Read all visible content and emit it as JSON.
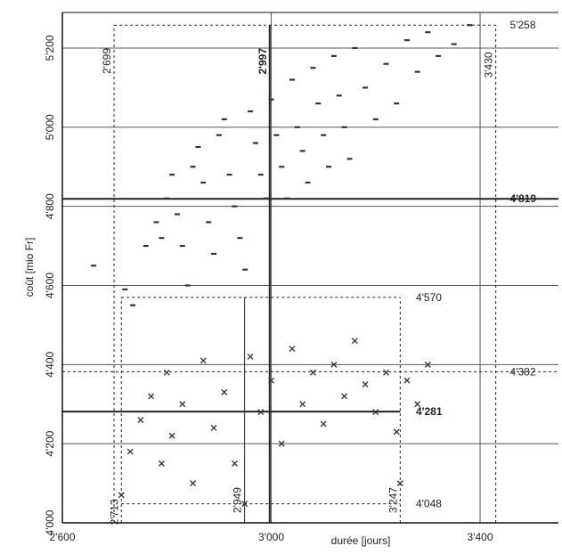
{
  "chart_data": {
    "type": "scatter",
    "title": "",
    "xlabel": "durée [jours]",
    "ylabel": "coût [mio Fr]",
    "xlim": [
      2600,
      3550
    ],
    "ylim": [
      4000,
      5290
    ],
    "x_ticks": [
      {
        "value": 2600,
        "label": "2'600"
      },
      {
        "value": 3000,
        "label": "3'000"
      },
      {
        "value": 3400,
        "label": "3'400"
      }
    ],
    "y_ticks": [
      {
        "value": 4000,
        "label": "4'000"
      },
      {
        "value": 4200,
        "label": "4'200"
      },
      {
        "value": 4400,
        "label": "4'400"
      },
      {
        "value": 4600,
        "label": "4'600"
      },
      {
        "value": 4800,
        "label": "4'800"
      },
      {
        "value": 5000,
        "label": "5'000"
      },
      {
        "value": 5200,
        "label": "5'200"
      }
    ],
    "grid": true,
    "series": [
      {
        "marker": "dash",
        "color": "#333333",
        "points": [
          [
            2660,
            4650
          ],
          [
            2720,
            4590
          ],
          [
            2735,
            4550
          ],
          [
            2760,
            4700
          ],
          [
            2780,
            4760
          ],
          [
            2790,
            4720
          ],
          [
            2800,
            4820
          ],
          [
            2810,
            4880
          ],
          [
            2820,
            4780
          ],
          [
            2830,
            4700
          ],
          [
            2840,
            4600
          ],
          [
            2850,
            4900
          ],
          [
            2860,
            4950
          ],
          [
            2870,
            4860
          ],
          [
            2880,
            4760
          ],
          [
            2890,
            4680
          ],
          [
            2900,
            4980
          ],
          [
            2910,
            5020
          ],
          [
            2920,
            4880
          ],
          [
            2930,
            4800
          ],
          [
            2940,
            4720
          ],
          [
            2950,
            4640
          ],
          [
            2960,
            5040
          ],
          [
            2970,
            4960
          ],
          [
            2980,
            4880
          ],
          [
            2990,
            4820
          ],
          [
            3000,
            5070
          ],
          [
            3010,
            4980
          ],
          [
            3020,
            4900
          ],
          [
            3030,
            4820
          ],
          [
            3040,
            5120
          ],
          [
            3050,
            5000
          ],
          [
            3060,
            4940
          ],
          [
            3070,
            4860
          ],
          [
            3080,
            5150
          ],
          [
            3090,
            5060
          ],
          [
            3100,
            4980
          ],
          [
            3110,
            4900
          ],
          [
            3120,
            5180
          ],
          [
            3130,
            5080
          ],
          [
            3140,
            5000
          ],
          [
            3150,
            4920
          ],
          [
            3160,
            5200
          ],
          [
            3180,
            5100
          ],
          [
            3200,
            5020
          ],
          [
            3220,
            5160
          ],
          [
            3240,
            5060
          ],
          [
            3260,
            5220
          ],
          [
            3280,
            5140
          ],
          [
            3300,
            5240
          ],
          [
            3320,
            5180
          ],
          [
            3350,
            5210
          ],
          [
            3380,
            5258
          ]
        ]
      },
      {
        "marker": "x",
        "color": "#3a3a3a",
        "points": [
          [
            2713,
            4070
          ],
          [
            2730,
            4180
          ],
          [
            2750,
            4260
          ],
          [
            2770,
            4320
          ],
          [
            2790,
            4150
          ],
          [
            2800,
            4380
          ],
          [
            2810,
            4220
          ],
          [
            2830,
            4300
          ],
          [
            2850,
            4100
          ],
          [
            2870,
            4410
          ],
          [
            2890,
            4240
          ],
          [
            2910,
            4330
          ],
          [
            2930,
            4150
          ],
          [
            2949,
            4048
          ],
          [
            2960,
            4420
          ],
          [
            2980,
            4280
          ],
          [
            3000,
            4360
          ],
          [
            3020,
            4200
          ],
          [
            3040,
            4440
          ],
          [
            3060,
            4300
          ],
          [
            3080,
            4380
          ],
          [
            3100,
            4250
          ],
          [
            3120,
            4400
          ],
          [
            3140,
            4320
          ],
          [
            3160,
            4460
          ],
          [
            3180,
            4350
          ],
          [
            3200,
            4280
          ],
          [
            3220,
            4380
          ],
          [
            3240,
            4230
          ],
          [
            3247,
            4100
          ],
          [
            3260,
            4360
          ],
          [
            3280,
            4300
          ],
          [
            3300,
            4400
          ]
        ]
      }
    ],
    "reference_lines": [
      {
        "axis": "y",
        "value": 5258,
        "label": "5'258",
        "style": "dotted"
      },
      {
        "axis": "y",
        "value": 4819,
        "label": "4'819",
        "style": "solid-bold"
      },
      {
        "axis": "y",
        "value": 4570,
        "label": "4'570",
        "style": "dotted"
      },
      {
        "axis": "y",
        "value": 4382,
        "label": "4'382",
        "style": "dotted"
      },
      {
        "axis": "y",
        "value": 4281,
        "label": "4'281",
        "style": "solid-bold"
      },
      {
        "axis": "y",
        "value": 4048,
        "label": "4'048",
        "style": "dotted"
      },
      {
        "axis": "x",
        "value": 2699,
        "label": "2'699",
        "style": "dotted"
      },
      {
        "axis": "x",
        "value": 2997,
        "label": "2'997",
        "style": "solid-bold"
      },
      {
        "axis": "x",
        "value": 3430,
        "label": "3'430",
        "style": "dotted"
      },
      {
        "axis": "x",
        "value": 2713,
        "label": "2'713",
        "style": "dotted"
      },
      {
        "axis": "x",
        "value": 2949,
        "label": "2'949",
        "style": "solid"
      },
      {
        "axis": "x",
        "value": 3247,
        "label": "3'247",
        "style": "dotted"
      }
    ]
  }
}
